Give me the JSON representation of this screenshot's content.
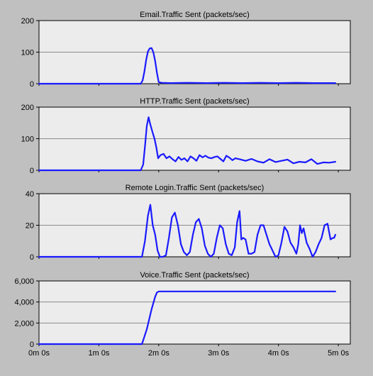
{
  "colors": {
    "background": "#c0c0c0",
    "plot_background": "#ececec",
    "gridline": "#8c8c8c",
    "series_line": "#1a1aff",
    "axis": "#000000"
  },
  "x_axis": {
    "unit": "minutes",
    "range": [
      0,
      5.2
    ],
    "ticks": [
      0,
      1,
      2,
      3,
      4,
      5
    ],
    "tick_labels": [
      "0m 0s",
      "1m 0s",
      "2m 0s",
      "3m 0s",
      "4m 0s",
      "5m 0s"
    ]
  },
  "chart_data": [
    {
      "type": "line",
      "title": "Email.Traffic Sent (packets/sec)",
      "ylim": [
        0,
        200
      ],
      "yticks": [
        0,
        100,
        200
      ],
      "ytick_labels": [
        "0",
        "100",
        "200"
      ],
      "grid": true,
      "series": [
        {
          "x": [
            0,
            1.7,
            1.73,
            1.76,
            1.79,
            1.82,
            1.85,
            1.88,
            1.91,
            1.94,
            1.97,
            2.0,
            2.05,
            2.2,
            2.5,
            2.8,
            3.1,
            3.4,
            3.7,
            4.0,
            4.3,
            4.6,
            4.95
          ],
          "y": [
            0,
            0,
            10,
            38,
            75,
            102,
            112,
            113,
            100,
            72,
            35,
            5,
            3,
            2,
            3,
            2,
            3,
            2,
            3,
            2,
            3,
            2,
            2
          ]
        }
      ]
    },
    {
      "type": "line",
      "title": "HTTP.Traffic Sent (packets/sec)",
      "ylim": [
        0,
        200
      ],
      "yticks": [
        0,
        100,
        200
      ],
      "ytick_labels": [
        "0",
        "100",
        "200"
      ],
      "grid": true,
      "series": [
        {
          "x": [
            0,
            1.7,
            1.74,
            1.77,
            1.8,
            1.83,
            1.86,
            1.9,
            1.93,
            1.96,
            1.99,
            2.03,
            2.08,
            2.13,
            2.18,
            2.23,
            2.28,
            2.33,
            2.38,
            2.43,
            2.48,
            2.53,
            2.58,
            2.63,
            2.68,
            2.73,
            2.78,
            2.83,
            2.88,
            2.93,
            2.98,
            3.03,
            3.08,
            3.13,
            3.18,
            3.23,
            3.28,
            3.35,
            3.45,
            3.55,
            3.65,
            3.75,
            3.85,
            3.95,
            4.05,
            4.15,
            4.25,
            4.35,
            4.45,
            4.55,
            4.65,
            4.75,
            4.85,
            4.95
          ],
          "y": [
            0,
            0,
            18,
            75,
            140,
            168,
            145,
            118,
            100,
            72,
            38,
            48,
            52,
            38,
            44,
            35,
            28,
            42,
            33,
            38,
            28,
            44,
            38,
            30,
            48,
            41,
            46,
            40,
            38,
            42,
            44,
            36,
            28,
            46,
            40,
            32,
            38,
            35,
            30,
            36,
            28,
            24,
            35,
            26,
            30,
            34,
            22,
            27,
            25,
            35,
            20,
            25,
            24,
            27
          ]
        }
      ]
    },
    {
      "type": "line",
      "title": "Remote Login.Traffic Sent (packets/sec)",
      "ylim": [
        0,
        40
      ],
      "yticks": [
        0,
        20,
        40
      ],
      "ytick_labels": [
        "0",
        "20",
        "40"
      ],
      "grid": true,
      "series": [
        {
          "x": [
            0,
            1.72,
            1.77,
            1.82,
            1.86,
            1.9,
            1.94,
            1.98,
            2.02,
            2.07,
            2.12,
            2.17,
            2.22,
            2.27,
            2.32,
            2.37,
            2.42,
            2.47,
            2.52,
            2.57,
            2.62,
            2.67,
            2.72,
            2.77,
            2.82,
            2.87,
            2.92,
            2.97,
            3.02,
            3.07,
            3.12,
            3.17,
            3.22,
            3.27,
            3.31,
            3.35,
            3.38,
            3.41,
            3.45,
            3.5,
            3.55,
            3.6,
            3.65,
            3.7,
            3.75,
            3.8,
            3.85,
            3.9,
            3.95,
            4.0,
            4.05,
            4.1,
            4.15,
            4.2,
            4.25,
            4.3,
            4.33,
            4.36,
            4.39,
            4.42,
            4.47,
            4.52,
            4.57,
            4.62,
            4.67,
            4.72,
            4.77,
            4.82,
            4.87,
            4.91,
            4.93,
            4.95
          ],
          "y": [
            0,
            0,
            10,
            26,
            33,
            20,
            14,
            4,
            0,
            0,
            1,
            12,
            25,
            28,
            20,
            8,
            3,
            1,
            3,
            14,
            22,
            24,
            18,
            7,
            2,
            0,
            2,
            12,
            20,
            18,
            8,
            2,
            1,
            6,
            22,
            29,
            11,
            12,
            11,
            2,
            2,
            3,
            14,
            20,
            20,
            14,
            8,
            4,
            0,
            1,
            9,
            19,
            16,
            9,
            6,
            2,
            8,
            20,
            15,
            18,
            9,
            5,
            0,
            3,
            8,
            12,
            20,
            21,
            11,
            12,
            12,
            14
          ]
        }
      ]
    },
    {
      "type": "line",
      "title": "Voice.Traffic Sent (packets/sec)",
      "ylim": [
        0,
        6000
      ],
      "yticks": [
        0,
        2000,
        4000,
        6000
      ],
      "ytick_labels": [
        "0",
        "2,000",
        "4,000",
        "6,000"
      ],
      "grid": true,
      "series": [
        {
          "x": [
            0,
            1.72,
            1.8,
            1.88,
            1.94,
            1.97,
            2.0,
            2.05,
            2.5,
            3.0,
            3.5,
            4.0,
            4.5,
            4.95
          ],
          "y": [
            0,
            0,
            1400,
            3300,
            4500,
            4900,
            5000,
            5000,
            5000,
            5000,
            5000,
            5000,
            5000,
            5000
          ]
        }
      ]
    }
  ]
}
